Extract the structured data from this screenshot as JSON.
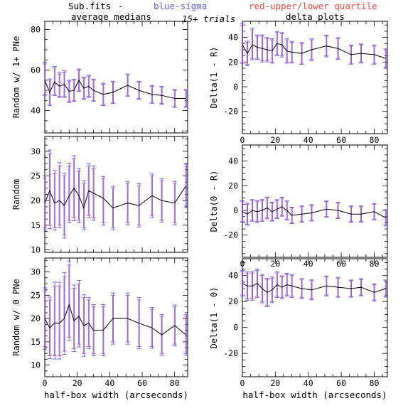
{
  "header": {
    "file_label": "Sub.fits",
    "dash": "-",
    "blue_label": "blue-sigma",
    "red_label": "red-upper/lower quartile",
    "trials": "15+ trials",
    "left_title": "average medians",
    "right_title": "delta plots"
  },
  "colors": {
    "line": "#000000",
    "sigma": "#5a5aff",
    "quartile": "#ff4040",
    "overlap": "#c050c0"
  },
  "chart_data": [
    {
      "type": "line",
      "panel": "left-top",
      "xlabel": "",
      "ylabel": "Random w/ 1+ PNe",
      "xlim": [
        0,
        88
      ],
      "ylim": [
        29,
        84
      ],
      "xticks": [
        0,
        20,
        40,
        60,
        80
      ],
      "yticks": [
        40,
        60,
        80
      ],
      "show_xticklabels": false,
      "x": [
        0,
        3,
        6,
        9,
        12,
        15,
        18,
        21,
        24,
        27,
        30,
        36,
        42,
        51,
        58,
        66,
        72,
        80,
        87
      ],
      "y": [
        55,
        49,
        54,
        52,
        53,
        49.5,
        50,
        55,
        51,
        52,
        50,
        48,
        49,
        52.5,
        50,
        48,
        47.5,
        46,
        46
      ],
      "err_lo": [
        7,
        6,
        6,
        5,
        6,
        5,
        5,
        5,
        5,
        5,
        5,
        5,
        5,
        5,
        4,
        4,
        4,
        4,
        4
      ],
      "err_hi": [
        8,
        6,
        7,
        6,
        6,
        5,
        5,
        5,
        5,
        5,
        5,
        5,
        5,
        5,
        4,
        4,
        4,
        4,
        4
      ]
    },
    {
      "type": "line",
      "panel": "right-top",
      "xlabel": "",
      "ylabel": "Delta(1 - R)",
      "xlim": [
        0,
        88
      ],
      "ylim": [
        -38,
        53
      ],
      "xticks": [
        0,
        20,
        40,
        60,
        80
      ],
      "yticks": [
        -20,
        0,
        20,
        40
      ],
      "show_xticklabels": true,
      "x": [
        0,
        3,
        6,
        9,
        12,
        15,
        18,
        21,
        24,
        27,
        30,
        36,
        42,
        51,
        58,
        66,
        72,
        80,
        87
      ],
      "y": [
        34,
        27,
        34,
        32,
        31,
        30,
        29,
        35,
        34,
        29,
        28,
        27,
        30,
        33,
        31,
        26,
        27,
        26,
        23
      ],
      "err_lo": [
        14,
        9,
        11,
        9,
        10,
        9,
        9,
        9,
        9,
        9,
        8,
        8,
        8,
        8,
        8,
        7,
        7,
        7,
        7
      ],
      "err_hi": [
        16,
        9,
        12,
        9,
        10,
        9,
        9,
        9,
        9,
        9,
        8,
        8,
        8,
        8,
        8,
        7,
        7,
        7,
        7
      ]
    },
    {
      "type": "line",
      "panel": "left-middle",
      "xlabel": "",
      "ylabel": "Random",
      "xlim": [
        0,
        88
      ],
      "ylim": [
        9.5,
        33
      ],
      "xticks": [
        0,
        20,
        40,
        60,
        80
      ],
      "yticks": [
        10,
        15,
        20,
        25,
        30
      ],
      "show_xticklabels": false,
      "x": [
        0,
        3,
        6,
        9,
        12,
        15,
        18,
        21,
        24,
        27,
        30,
        36,
        42,
        51,
        58,
        66,
        72,
        80,
        87
      ],
      "y": [
        19.5,
        22,
        19.5,
        20,
        19,
        21,
        22.5,
        21,
        18.5,
        22,
        21.5,
        20.5,
        18.5,
        19.5,
        19,
        21,
        20,
        19.5,
        23
      ],
      "err_lo": [
        5,
        7,
        5,
        5,
        6,
        5,
        6,
        5,
        4,
        5,
        5,
        5,
        4,
        4,
        4,
        4,
        4,
        4,
        4
      ],
      "err_hi": [
        5,
        7.5,
        6,
        7,
        6,
        6,
        6,
        5,
        5,
        5,
        5,
        4,
        4,
        4,
        4,
        4,
        4,
        4,
        4
      ]
    },
    {
      "type": "line",
      "panel": "right-middle",
      "xlabel": "",
      "ylabel": "Delta(0 - R)",
      "xlim": [
        0,
        88
      ],
      "ylim": [
        -38,
        53
      ],
      "xticks": [
        0,
        20,
        40,
        60,
        80
      ],
      "yticks": [
        -20,
        0,
        20,
        40
      ],
      "show_xticklabels": true,
      "x": [
        0,
        3,
        6,
        9,
        12,
        15,
        18,
        21,
        24,
        27,
        30,
        36,
        42,
        51,
        58,
        66,
        72,
        80,
        87
      ],
      "y": [
        -1,
        -3,
        0,
        -1,
        0,
        2,
        -1,
        1,
        3,
        0,
        -4,
        -3,
        -2,
        1,
        0,
        -3,
        -3,
        -1,
        -6
      ],
      "err_lo": [
        8,
        8,
        8,
        8,
        8,
        8,
        7,
        7,
        7,
        7,
        6,
        6,
        6,
        6,
        6,
        6,
        6,
        6,
        6
      ],
      "err_hi": [
        8,
        8,
        8,
        8,
        8,
        8,
        7,
        7,
        7,
        7,
        6,
        6,
        6,
        6,
        6,
        6,
        6,
        6,
        6
      ]
    },
    {
      "type": "line",
      "panel": "left-bottom",
      "xlabel": "half-box width (arcseconds)",
      "ylabel": "Random w/ 0 PNe",
      "xlim": [
        0,
        88
      ],
      "ylim": [
        7.5,
        33
      ],
      "xticks": [
        0,
        20,
        40,
        60,
        80
      ],
      "yticks": [
        10,
        15,
        20,
        25,
        30
      ],
      "show_xticklabels": true,
      "x": [
        0,
        3,
        6,
        9,
        12,
        15,
        18,
        21,
        24,
        27,
        30,
        36,
        42,
        51,
        58,
        66,
        72,
        80,
        87
      ],
      "y": [
        20,
        18,
        19,
        19,
        20,
        23,
        19.5,
        20.5,
        18.5,
        19,
        17.5,
        17.5,
        20,
        20,
        19,
        18,
        16.5,
        18.5,
        16.5
      ],
      "err_lo": [
        6,
        6,
        7,
        7,
        7,
        7,
        6,
        6,
        6,
        5,
        5,
        5,
        5,
        5,
        5,
        4,
        4,
        4,
        4
      ],
      "err_hi": [
        6,
        6,
        8,
        8,
        9,
        8.5,
        7,
        7,
        6,
        5,
        5,
        5,
        5,
        5,
        5,
        4,
        4,
        4,
        4
      ]
    },
    {
      "type": "line",
      "panel": "right-bottom",
      "xlabel": "half-box width (arcseconds)",
      "ylabel": "Delta(1 - 0)",
      "xlim": [
        0,
        88
      ],
      "ylim": [
        -38,
        53
      ],
      "xticks": [
        0,
        20,
        40,
        60,
        80
      ],
      "yticks": [
        -20,
        0,
        20,
        40
      ],
      "show_xticklabels": true,
      "x": [
        0,
        3,
        6,
        9,
        12,
        15,
        18,
        21,
        24,
        27,
        30,
        36,
        42,
        51,
        58,
        66,
        72,
        80,
        87
      ],
      "y": [
        34,
        32,
        32,
        34,
        30,
        27,
        29,
        33,
        31,
        33,
        32,
        30,
        29,
        32,
        31,
        30,
        31,
        27,
        30
      ],
      "err_lo": [
        9,
        10,
        10,
        10,
        10,
        10,
        9,
        9,
        8,
        8,
        8,
        7,
        7,
        7,
        7,
        6,
        6,
        6,
        6
      ],
      "err_hi": [
        9,
        10,
        10,
        10,
        10,
        10,
        9,
        9,
        8,
        8,
        8,
        7,
        7,
        7,
        7,
        6,
        6,
        6,
        6
      ]
    }
  ]
}
